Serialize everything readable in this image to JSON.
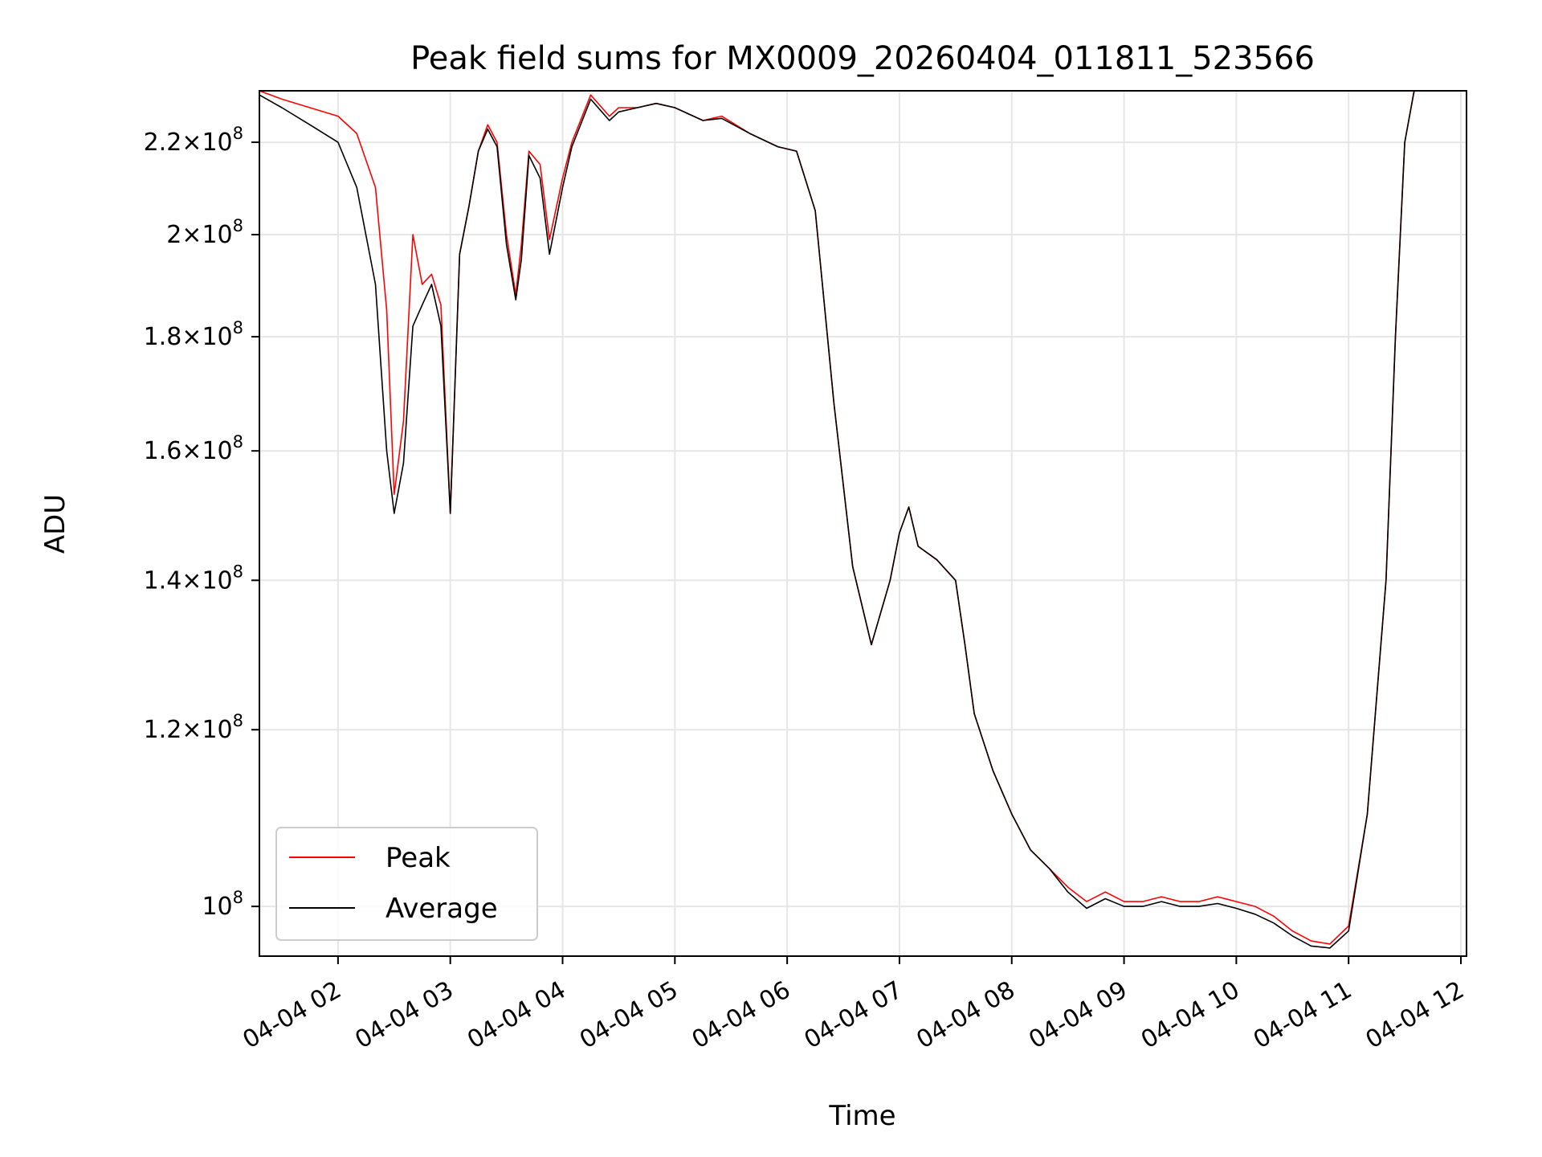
{
  "chart_data": {
    "type": "line",
    "title": "Peak field sums for MX0009_20260404_011811_523566",
    "xlabel": "Time",
    "ylabel": "ADU",
    "y_scale": "log",
    "xlim": [
      "2026-04-04 01:18",
      "2026-04-04 12:03"
    ],
    "ylim": [
      95000000,
      232000000
    ],
    "grid": true,
    "legend_position": "lower-left",
    "x_ticks": [
      "04-04 02",
      "04-04 03",
      "04-04 04",
      "04-04 05",
      "04-04 06",
      "04-04 07",
      "04-04 08",
      "04-04 09",
      "04-04 10",
      "04-04 11",
      "04-04 12"
    ],
    "y_ticks": [
      {
        "value": 100000000,
        "mantissa": "",
        "exponent": "8",
        "base": "10"
      },
      {
        "value": 120000000,
        "mantissa": "1.2",
        "exponent": "8",
        "base": "10"
      },
      {
        "value": 140000000,
        "mantissa": "1.4",
        "exponent": "8",
        "base": "10"
      },
      {
        "value": 160000000,
        "mantissa": "1.6",
        "exponent": "8",
        "base": "10"
      },
      {
        "value": 180000000,
        "mantissa": "1.8",
        "exponent": "8",
        "base": "10"
      },
      {
        "value": 200000000,
        "mantissa": "2",
        "exponent": "8",
        "base": "10"
      },
      {
        "value": 220000000,
        "mantissa": "2.2",
        "exponent": "8",
        "base": "10"
      }
    ],
    "series": [
      {
        "name": "Peak",
        "color": "#ff0000",
        "x": [
          "2026-04-04 01:18",
          "2026-04-04 01:30",
          "2026-04-04 01:45",
          "2026-04-04 02:00",
          "2026-04-04 02:10",
          "2026-04-04 02:20",
          "2026-04-04 02:26",
          "2026-04-04 02:30",
          "2026-04-04 02:35",
          "2026-04-04 02:40",
          "2026-04-04 02:45",
          "2026-04-04 02:50",
          "2026-04-04 02:55",
          "2026-04-04 03:00",
          "2026-04-04 03:05",
          "2026-04-04 03:10",
          "2026-04-04 03:15",
          "2026-04-04 03:20",
          "2026-04-04 03:25",
          "2026-04-04 03:30",
          "2026-04-04 03:35",
          "2026-04-04 03:38",
          "2026-04-04 03:42",
          "2026-04-04 03:48",
          "2026-04-04 03:53",
          "2026-04-04 04:00",
          "2026-04-04 04:05",
          "2026-04-04 04:15",
          "2026-04-04 04:25",
          "2026-04-04 04:30",
          "2026-04-04 04:40",
          "2026-04-04 04:50",
          "2026-04-04 05:00",
          "2026-04-04 05:15",
          "2026-04-04 05:25",
          "2026-04-04 05:40",
          "2026-04-04 05:55",
          "2026-04-04 06:05",
          "2026-04-04 06:15",
          "2026-04-04 06:25",
          "2026-04-04 06:35",
          "2026-04-04 06:45",
          "2026-04-04 06:55",
          "2026-04-04 07:00",
          "2026-04-04 07:05",
          "2026-04-04 07:10",
          "2026-04-04 07:20",
          "2026-04-04 07:30",
          "2026-04-04 07:35",
          "2026-04-04 07:40",
          "2026-04-04 07:50",
          "2026-04-04 08:00",
          "2026-04-04 08:10",
          "2026-04-04 08:20",
          "2026-04-04 08:30",
          "2026-04-04 08:40",
          "2026-04-04 08:50",
          "2026-04-04 09:00",
          "2026-04-04 09:10",
          "2026-04-04 09:20",
          "2026-04-04 09:30",
          "2026-04-04 09:40",
          "2026-04-04 09:50",
          "2026-04-04 10:00",
          "2026-04-04 10:10",
          "2026-04-04 10:20",
          "2026-04-04 10:30",
          "2026-04-04 10:40",
          "2026-04-04 10:50",
          "2026-04-04 11:00",
          "2026-04-04 11:10",
          "2026-04-04 11:20",
          "2026-04-04 11:25",
          "2026-04-04 11:30",
          "2026-04-04 11:35",
          "2026-04-04 11:40",
          "2026-04-04 11:45",
          "2026-04-04 11:50",
          "2026-04-04 11:55",
          "2026-04-04 12:00"
        ],
        "values": [
          232000000,
          230000000,
          228000000,
          226000000,
          222000000,
          210000000,
          185000000,
          153000000,
          165000000,
          200000000,
          190000000,
          192000000,
          186000000,
          150000000,
          196000000,
          206000000,
          218000000,
          224000000,
          220000000,
          200000000,
          188000000,
          198000000,
          218000000,
          215000000,
          199000000,
          212000000,
          220000000,
          231000000,
          226000000,
          228000000,
          228000000,
          229000000,
          228000000,
          225000000,
          226000000,
          222000000,
          219000000,
          218000000,
          205000000,
          168000000,
          142000000,
          131000000,
          140000000,
          147000000,
          151000000,
          145000000,
          143000000,
          140000000,
          131000000,
          122000000,
          115000000,
          110000000,
          106000000,
          104000000,
          102000000,
          100500000,
          101500000,
          100500000,
          100500000,
          101000000,
          100500000,
          100500000,
          101000000,
          100500000,
          100000000,
          99000000,
          97500000,
          96500000,
          96200000,
          98000000,
          110000000,
          140000000,
          180000000,
          220000000,
          232000000,
          232000000,
          232000000,
          232000000,
          232000000,
          232000000
        ]
      },
      {
        "name": "Average",
        "color": "#000000",
        "x": [
          "2026-04-04 01:18",
          "2026-04-04 01:30",
          "2026-04-04 01:45",
          "2026-04-04 02:00",
          "2026-04-04 02:10",
          "2026-04-04 02:20",
          "2026-04-04 02:26",
          "2026-04-04 02:30",
          "2026-04-04 02:35",
          "2026-04-04 02:40",
          "2026-04-04 02:45",
          "2026-04-04 02:50",
          "2026-04-04 02:55",
          "2026-04-04 03:00",
          "2026-04-04 03:05",
          "2026-04-04 03:10",
          "2026-04-04 03:15",
          "2026-04-04 03:20",
          "2026-04-04 03:25",
          "2026-04-04 03:30",
          "2026-04-04 03:35",
          "2026-04-04 03:38",
          "2026-04-04 03:42",
          "2026-04-04 03:48",
          "2026-04-04 03:53",
          "2026-04-04 04:00",
          "2026-04-04 04:05",
          "2026-04-04 04:15",
          "2026-04-04 04:25",
          "2026-04-04 04:30",
          "2026-04-04 04:40",
          "2026-04-04 04:50",
          "2026-04-04 05:00",
          "2026-04-04 05:15",
          "2026-04-04 05:25",
          "2026-04-04 05:40",
          "2026-04-04 05:55",
          "2026-04-04 06:05",
          "2026-04-04 06:15",
          "2026-04-04 06:25",
          "2026-04-04 06:35",
          "2026-04-04 06:45",
          "2026-04-04 06:55",
          "2026-04-04 07:00",
          "2026-04-04 07:05",
          "2026-04-04 07:10",
          "2026-04-04 07:20",
          "2026-04-04 07:30",
          "2026-04-04 07:35",
          "2026-04-04 07:40",
          "2026-04-04 07:50",
          "2026-04-04 08:00",
          "2026-04-04 08:10",
          "2026-04-04 08:20",
          "2026-04-04 08:30",
          "2026-04-04 08:40",
          "2026-04-04 08:50",
          "2026-04-04 09:00",
          "2026-04-04 09:10",
          "2026-04-04 09:20",
          "2026-04-04 09:30",
          "2026-04-04 09:40",
          "2026-04-04 09:50",
          "2026-04-04 10:00",
          "2026-04-04 10:10",
          "2026-04-04 10:20",
          "2026-04-04 10:30",
          "2026-04-04 10:40",
          "2026-04-04 10:50",
          "2026-04-04 11:00",
          "2026-04-04 11:10",
          "2026-04-04 11:20",
          "2026-04-04 11:25",
          "2026-04-04 11:30",
          "2026-04-04 11:35",
          "2026-04-04 11:40",
          "2026-04-04 11:45",
          "2026-04-04 11:50",
          "2026-04-04 11:55",
          "2026-04-04 12:00"
        ],
        "values": [
          231000000,
          228000000,
          224000000,
          220000000,
          210000000,
          190000000,
          160000000,
          150000000,
          158000000,
          182000000,
          186000000,
          190000000,
          182000000,
          150000000,
          196000000,
          206000000,
          218000000,
          223000000,
          219000000,
          198000000,
          187000000,
          195000000,
          217000000,
          212000000,
          196000000,
          210000000,
          219000000,
          230000000,
          225000000,
          227000000,
          228000000,
          229000000,
          228000000,
          225000000,
          225500000,
          222000000,
          219000000,
          218000000,
          205000000,
          168000000,
          142000000,
          131000000,
          140000000,
          147000000,
          151000000,
          145000000,
          143000000,
          140000000,
          131000000,
          122000000,
          115000000,
          110000000,
          106000000,
          104000000,
          101500000,
          99800000,
          100800000,
          100000000,
          100000000,
          100500000,
          100000000,
          100000000,
          100300000,
          99800000,
          99200000,
          98300000,
          97000000,
          96000000,
          95800000,
          97500000,
          110000000,
          140000000,
          180000000,
          220000000,
          232000000,
          232000000,
          232000000,
          232000000,
          232000000,
          232000000
        ]
      }
    ]
  }
}
